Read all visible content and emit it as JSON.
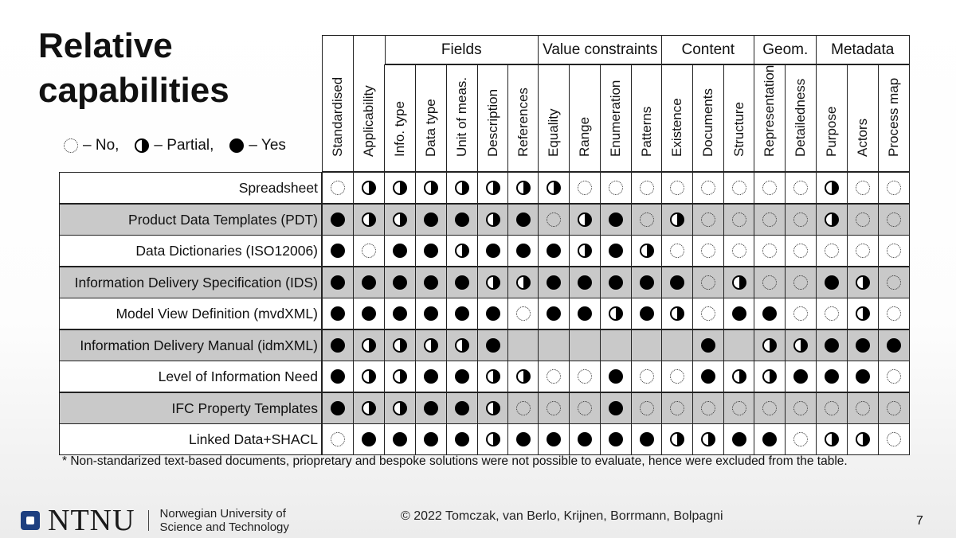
{
  "slide": {
    "title_line1": "Relative",
    "title_line2": "capabilities",
    "legend": {
      "no": "– No,",
      "partial": "– Partial,",
      "yes": "– Yes"
    },
    "footnote": "* Non-standarized text-based documents, priopretary and bespoke solutions were not possible to evaluate, hence were excluded from the table.",
    "copyright": "© 2022 Tomczak, van Berlo, Krijnen, Borrmann, Bolpagni",
    "page_number": "7",
    "logo_text": "NTNU",
    "university_line1": "Norwegian University of",
    "university_line2": "Science and Technology"
  },
  "table": {
    "groups": [
      "Fields",
      "Value constraints",
      "Content",
      "Geom.",
      "Metadata"
    ],
    "columns": [
      "Standardised",
      "Applicability",
      "Info. type",
      "Data type",
      "Unit of meas.",
      "Description",
      "References",
      "Equality",
      "Range",
      "Enumeration",
      "Patterns",
      "Existence",
      "Documents",
      "Structure",
      "Representation",
      "Detailedness",
      "Purpose",
      "Actors",
      "Process map"
    ],
    "rows": [
      {
        "label": "Spreadsheet",
        "shaded": false,
        "values": [
          "N",
          "P",
          "P",
          "P",
          "P",
          "P",
          "P",
          "P",
          "N",
          "N",
          "N",
          "N",
          "N",
          "N",
          "N",
          "N",
          "P",
          "N",
          "N"
        ]
      },
      {
        "label": "Product Data Templates (PDT)",
        "shaded": true,
        "values": [
          "Y",
          "P",
          "P",
          "Y",
          "Y",
          "P",
          "Y",
          "N",
          "P",
          "Y",
          "N",
          "P",
          "N",
          "N",
          "N",
          "N",
          "P",
          "N",
          "N"
        ]
      },
      {
        "label": "Data Dictionaries (ISO12006)",
        "shaded": false,
        "values": [
          "Y",
          "N",
          "Y",
          "Y",
          "P",
          "Y",
          "Y",
          "Y",
          "P",
          "Y",
          "P",
          "N",
          "N",
          "N",
          "N",
          "N",
          "N",
          "N",
          "N"
        ]
      },
      {
        "label": "Information Delivery Specification (IDS)",
        "shaded": true,
        "values": [
          "Y",
          "Y",
          "Y",
          "Y",
          "Y",
          "P",
          "P",
          "Y",
          "Y",
          "Y",
          "Y",
          "Y",
          "N",
          "P",
          "N",
          "N",
          "Y",
          "P",
          "N"
        ]
      },
      {
        "label": "Model View Definition (mvdXML)",
        "shaded": false,
        "values": [
          "Y",
          "Y",
          "Y",
          "Y",
          "Y",
          "Y",
          "N",
          "Y",
          "Y",
          "P",
          "Y",
          "P",
          "N",
          "Y",
          "Y",
          "N",
          "N",
          "P",
          "N"
        ]
      },
      {
        "label": "Information Delivery Manual (idmXML)",
        "shaded": true,
        "values": [
          "Y",
          "P",
          "P",
          "P",
          "P",
          "Y",
          "",
          "",
          "",
          "",
          "",
          "",
          "Y",
          "",
          "P",
          "P",
          "Y",
          "Y",
          "Y"
        ]
      },
      {
        "label": "Level of Information Need",
        "shaded": false,
        "values": [
          "Y",
          "P",
          "P",
          "Y",
          "Y",
          "P",
          "P",
          "N",
          "N",
          "Y",
          "N",
          "N",
          "Y",
          "P",
          "P",
          "Y",
          "Y",
          "Y",
          "N"
        ]
      },
      {
        "label": "IFC Property Templates",
        "shaded": true,
        "values": [
          "Y",
          "P",
          "P",
          "Y",
          "Y",
          "P",
          "N",
          "N",
          "N",
          "Y",
          "N",
          "N",
          "N",
          "N",
          "N",
          "N",
          "N",
          "N",
          "N"
        ]
      },
      {
        "label": "Linked Data+SHACL",
        "shaded": false,
        "values": [
          "N",
          "Y",
          "Y",
          "Y",
          "Y",
          "P",
          "Y",
          "Y",
          "Y",
          "Y",
          "Y",
          "P",
          "P",
          "Y",
          "Y",
          "N",
          "P",
          "P",
          "N"
        ]
      }
    ]
  }
}
